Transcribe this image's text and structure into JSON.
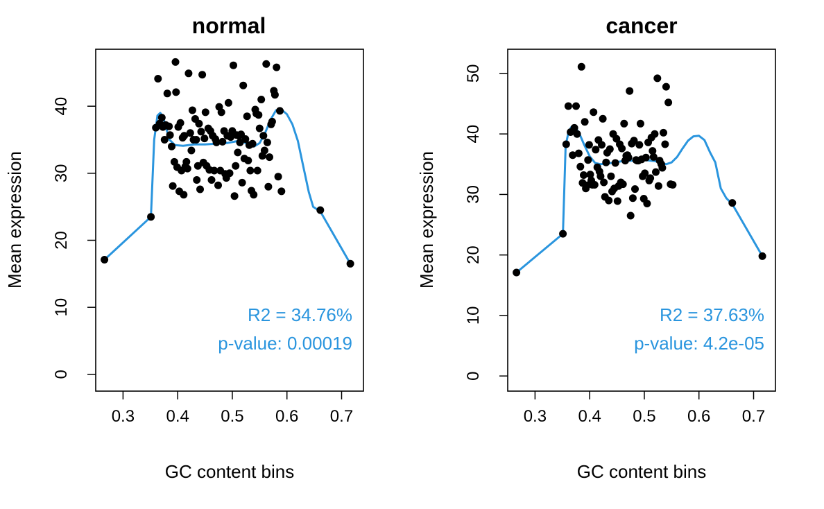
{
  "colors": {
    "fit_line": "#2A95DE",
    "points": "#000000",
    "annotation": "#2A95DE",
    "frame": "#000000"
  },
  "chart_data": [
    {
      "type": "scatter",
      "title": "normal",
      "xlabel": "GC content bins",
      "ylabel": "Mean expression",
      "xlim": [
        0.25,
        0.74
      ],
      "ylim": [
        -2.5,
        48.5
      ],
      "x_ticks": [
        0.3,
        0.4,
        0.5,
        0.6,
        0.7
      ],
      "x_tick_labels": [
        "0.3",
        "0.4",
        "0.5",
        "0.6",
        "0.7"
      ],
      "y_ticks": [
        0,
        10,
        20,
        30,
        40
      ],
      "y_tick_labels": [
        "0",
        "10",
        "20",
        "30",
        "40"
      ],
      "grid": false,
      "annotations": [
        "R2 = 34.76%",
        "p-value: 0.00019"
      ],
      "points": [
        [
          0.266,
          17.1
        ],
        [
          0.351,
          23.5
        ],
        [
          0.36,
          36.8
        ],
        [
          0.364,
          44.1
        ],
        [
          0.367,
          37.4
        ],
        [
          0.371,
          38.3
        ],
        [
          0.373,
          36.9
        ],
        [
          0.376,
          35.0
        ],
        [
          0.378,
          37.2
        ],
        [
          0.381,
          41.9
        ],
        [
          0.384,
          37.0
        ],
        [
          0.386,
          35.7
        ],
        [
          0.389,
          34.0
        ],
        [
          0.391,
          28.1
        ],
        [
          0.394,
          31.7
        ],
        [
          0.396,
          46.6
        ],
        [
          0.397,
          42.1
        ],
        [
          0.399,
          30.9
        ],
        [
          0.401,
          36.9
        ],
        [
          0.403,
          27.3
        ],
        [
          0.405,
          37.5
        ],
        [
          0.407,
          30.4
        ],
        [
          0.409,
          35.3
        ],
        [
          0.411,
          26.8
        ],
        [
          0.412,
          35.6
        ],
        [
          0.414,
          31.0
        ],
        [
          0.416,
          31.7
        ],
        [
          0.418,
          30.7
        ],
        [
          0.42,
          44.9
        ],
        [
          0.423,
          36.0
        ],
        [
          0.425,
          33.4
        ],
        [
          0.427,
          39.4
        ],
        [
          0.429,
          35.0
        ],
        [
          0.432,
          38.1
        ],
        [
          0.434,
          35.0
        ],
        [
          0.435,
          29.0
        ],
        [
          0.437,
          31.1
        ],
        [
          0.439,
          37.4
        ],
        [
          0.441,
          27.6
        ],
        [
          0.443,
          36.2
        ],
        [
          0.445,
          44.7
        ],
        [
          0.447,
          31.6
        ],
        [
          0.449,
          35.2
        ],
        [
          0.451,
          39.1
        ],
        [
          0.453,
          31.1
        ],
        [
          0.456,
          36.7
        ],
        [
          0.458,
          30.5
        ],
        [
          0.46,
          36.3
        ],
        [
          0.462,
          29.0
        ],
        [
          0.464,
          35.6
        ],
        [
          0.467,
          30.4
        ],
        [
          0.469,
          35.1
        ],
        [
          0.471,
          34.6
        ],
        [
          0.474,
          28.2
        ],
        [
          0.476,
          39.9
        ],
        [
          0.478,
          30.4
        ],
        [
          0.48,
          39.1
        ],
        [
          0.482,
          34.7
        ],
        [
          0.485,
          36.3
        ],
        [
          0.487,
          29.9
        ],
        [
          0.489,
          29.3
        ],
        [
          0.491,
          35.6
        ],
        [
          0.493,
          40.5
        ],
        [
          0.495,
          30.0
        ],
        [
          0.497,
          35.4
        ],
        [
          0.5,
          36.3
        ],
        [
          0.502,
          46.1
        ],
        [
          0.504,
          26.6
        ],
        [
          0.506,
          31.1
        ],
        [
          0.508,
          35.7
        ],
        [
          0.51,
          33.1
        ],
        [
          0.512,
          35.6
        ],
        [
          0.514,
          34.6
        ],
        [
          0.516,
          35.8
        ],
        [
          0.518,
          28.6
        ],
        [
          0.52,
          43.1
        ],
        [
          0.522,
          32.2
        ],
        [
          0.524,
          35.1
        ],
        [
          0.527,
          38.5
        ],
        [
          0.529,
          31.9
        ],
        [
          0.531,
          34.2
        ],
        [
          0.533,
          30.4
        ],
        [
          0.535,
          27.4
        ],
        [
          0.537,
          34.4
        ],
        [
          0.539,
          26.8
        ],
        [
          0.542,
          39.5
        ],
        [
          0.544,
          38.9
        ],
        [
          0.546,
          30.4
        ],
        [
          0.548,
          38.7
        ],
        [
          0.55,
          36.7
        ],
        [
          0.553,
          41.0
        ],
        [
          0.555,
          32.6
        ],
        [
          0.557,
          35.6
        ],
        [
          0.559,
          33.4
        ],
        [
          0.562,
          46.3
        ],
        [
          0.564,
          34.6
        ],
        [
          0.566,
          28.0
        ],
        [
          0.568,
          32.4
        ],
        [
          0.571,
          37.3
        ],
        [
          0.573,
          37.7
        ],
        [
          0.576,
          42.3
        ],
        [
          0.578,
          41.7
        ],
        [
          0.581,
          45.8
        ],
        [
          0.584,
          29.5
        ],
        [
          0.587,
          39.3
        ],
        [
          0.59,
          27.3
        ],
        [
          0.661,
          24.5
        ],
        [
          0.716,
          16.5
        ]
      ],
      "fit_line": [
        [
          0.266,
          17.1
        ],
        [
          0.351,
          23.5
        ],
        [
          0.357,
          35.0
        ],
        [
          0.363,
          38.6
        ],
        [
          0.368,
          39.0
        ],
        [
          0.373,
          38.5
        ],
        [
          0.378,
          37.0
        ],
        [
          0.385,
          35.0
        ],
        [
          0.395,
          34.2
        ],
        [
          0.41,
          34.1
        ],
        [
          0.43,
          34.3
        ],
        [
          0.45,
          34.3
        ],
        [
          0.47,
          34.4
        ],
        [
          0.49,
          34.5
        ],
        [
          0.51,
          34.8
        ],
        [
          0.52,
          34.7
        ],
        [
          0.53,
          34.2
        ],
        [
          0.54,
          34.0
        ],
        [
          0.55,
          34.5
        ],
        [
          0.56,
          36.0
        ],
        [
          0.57,
          38.0
        ],
        [
          0.58,
          39.4
        ],
        [
          0.59,
          39.5
        ],
        [
          0.6,
          38.8
        ],
        [
          0.61,
          37.3
        ],
        [
          0.62,
          34.8
        ],
        [
          0.63,
          31.0
        ],
        [
          0.64,
          27.2
        ],
        [
          0.648,
          25.0
        ],
        [
          0.661,
          24.3
        ],
        [
          0.716,
          16.5
        ]
      ]
    },
    {
      "type": "scatter",
      "title": "cancer",
      "xlabel": "GC content bins",
      "ylabel": "Mean expression",
      "xlim": [
        0.25,
        0.74
      ],
      "ylim": [
        -2.5,
        54.0
      ],
      "x_ticks": [
        0.3,
        0.4,
        0.5,
        0.6,
        0.7
      ],
      "x_tick_labels": [
        "0.3",
        "0.4",
        "0.5",
        "0.6",
        "0.7"
      ],
      "y_ticks": [
        0,
        10,
        20,
        30,
        40,
        50
      ],
      "y_tick_labels": [
        "0",
        "10",
        "20",
        "30",
        "40",
        "50"
      ],
      "grid": false,
      "annotations": [
        "R2 = 37.63%",
        "p-value: 4.2e-05"
      ],
      "points": [
        [
          0.266,
          17.1
        ],
        [
          0.351,
          23.5
        ],
        [
          0.357,
          38.3
        ],
        [
          0.361,
          44.6
        ],
        [
          0.365,
          40.3
        ],
        [
          0.369,
          36.5
        ],
        [
          0.372,
          41.0
        ],
        [
          0.375,
          44.6
        ],
        [
          0.377,
          40.0
        ],
        [
          0.38,
          36.8
        ],
        [
          0.383,
          34.6
        ],
        [
          0.385,
          51.1
        ],
        [
          0.387,
          31.9
        ],
        [
          0.389,
          33.2
        ],
        [
          0.391,
          42.0
        ],
        [
          0.393,
          31.0
        ],
        [
          0.395,
          31.5
        ],
        [
          0.397,
          35.7
        ],
        [
          0.399,
          38.2
        ],
        [
          0.401,
          33.3
        ],
        [
          0.403,
          32.3
        ],
        [
          0.405,
          31.6
        ],
        [
          0.407,
          43.6
        ],
        [
          0.409,
          31.6
        ],
        [
          0.411,
          37.4
        ],
        [
          0.414,
          34.5
        ],
        [
          0.416,
          39.0
        ],
        [
          0.418,
          33.8
        ],
        [
          0.42,
          33.0
        ],
        [
          0.422,
          38.2
        ],
        [
          0.424,
          42.5
        ],
        [
          0.426,
          32.0
        ],
        [
          0.428,
          29.6
        ],
        [
          0.43,
          35.3
        ],
        [
          0.432,
          36.9
        ],
        [
          0.435,
          29.0
        ],
        [
          0.437,
          37.5
        ],
        [
          0.439,
          33.0
        ],
        [
          0.441,
          30.5
        ],
        [
          0.443,
          40.0
        ],
        [
          0.445,
          31.0
        ],
        [
          0.447,
          35.2
        ],
        [
          0.449,
          39.2
        ],
        [
          0.451,
          28.9
        ],
        [
          0.453,
          31.4
        ],
        [
          0.455,
          38.3
        ],
        [
          0.457,
          32.0
        ],
        [
          0.459,
          37.6
        ],
        [
          0.461,
          31.7
        ],
        [
          0.463,
          41.7
        ],
        [
          0.465,
          35.6
        ],
        [
          0.467,
          36.4
        ],
        [
          0.469,
          36.5
        ],
        [
          0.471,
          36.1
        ],
        [
          0.473,
          47.1
        ],
        [
          0.475,
          26.5
        ],
        [
          0.477,
          38.4
        ],
        [
          0.479,
          29.4
        ],
        [
          0.481,
          38.9
        ],
        [
          0.483,
          30.9
        ],
        [
          0.485,
          35.7
        ],
        [
          0.487,
          35.6
        ],
        [
          0.489,
          35.6
        ],
        [
          0.491,
          38.2
        ],
        [
          0.493,
          41.7
        ],
        [
          0.495,
          35.8
        ],
        [
          0.497,
          33.0
        ],
        [
          0.499,
          29.3
        ],
        [
          0.501,
          33.5
        ],
        [
          0.503,
          36.1
        ],
        [
          0.505,
          28.5
        ],
        [
          0.507,
          38.6
        ],
        [
          0.509,
          32.3
        ],
        [
          0.511,
          32.7
        ],
        [
          0.513,
          39.4
        ],
        [
          0.515,
          37.2
        ],
        [
          0.517,
          36.2
        ],
        [
          0.519,
          40.0
        ],
        [
          0.521,
          33.7
        ],
        [
          0.524,
          49.2
        ],
        [
          0.526,
          31.4
        ],
        [
          0.528,
          35.6
        ],
        [
          0.531,
          35.0
        ],
        [
          0.533,
          34.4
        ],
        [
          0.535,
          40.2
        ],
        [
          0.538,
          38.3
        ],
        [
          0.54,
          47.8
        ],
        [
          0.544,
          45.2
        ],
        [
          0.548,
          31.7
        ],
        [
          0.552,
          31.6
        ],
        [
          0.661,
          28.6
        ],
        [
          0.716,
          19.8
        ]
      ],
      "fit_line": [
        [
          0.266,
          17.1
        ],
        [
          0.351,
          23.5
        ],
        [
          0.356,
          38.0
        ],
        [
          0.361,
          40.2
        ],
        [
          0.366,
          41.1
        ],
        [
          0.372,
          41.2
        ],
        [
          0.38,
          40.3
        ],
        [
          0.39,
          38.2
        ],
        [
          0.4,
          36.3
        ],
        [
          0.41,
          35.2
        ],
        [
          0.42,
          35.0
        ],
        [
          0.44,
          35.2
        ],
        [
          0.46,
          35.5
        ],
        [
          0.48,
          35.6
        ],
        [
          0.5,
          35.7
        ],
        [
          0.52,
          35.5
        ],
        [
          0.54,
          35.0
        ],
        [
          0.55,
          35.3
        ],
        [
          0.56,
          36.2
        ],
        [
          0.57,
          37.6
        ],
        [
          0.58,
          38.9
        ],
        [
          0.59,
          39.6
        ],
        [
          0.6,
          39.7
        ],
        [
          0.61,
          39.0
        ],
        [
          0.62,
          37.0
        ],
        [
          0.63,
          35.3
        ],
        [
          0.64,
          31.0
        ],
        [
          0.65,
          29.4
        ],
        [
          0.661,
          28.4
        ],
        [
          0.716,
          19.8
        ]
      ]
    }
  ]
}
